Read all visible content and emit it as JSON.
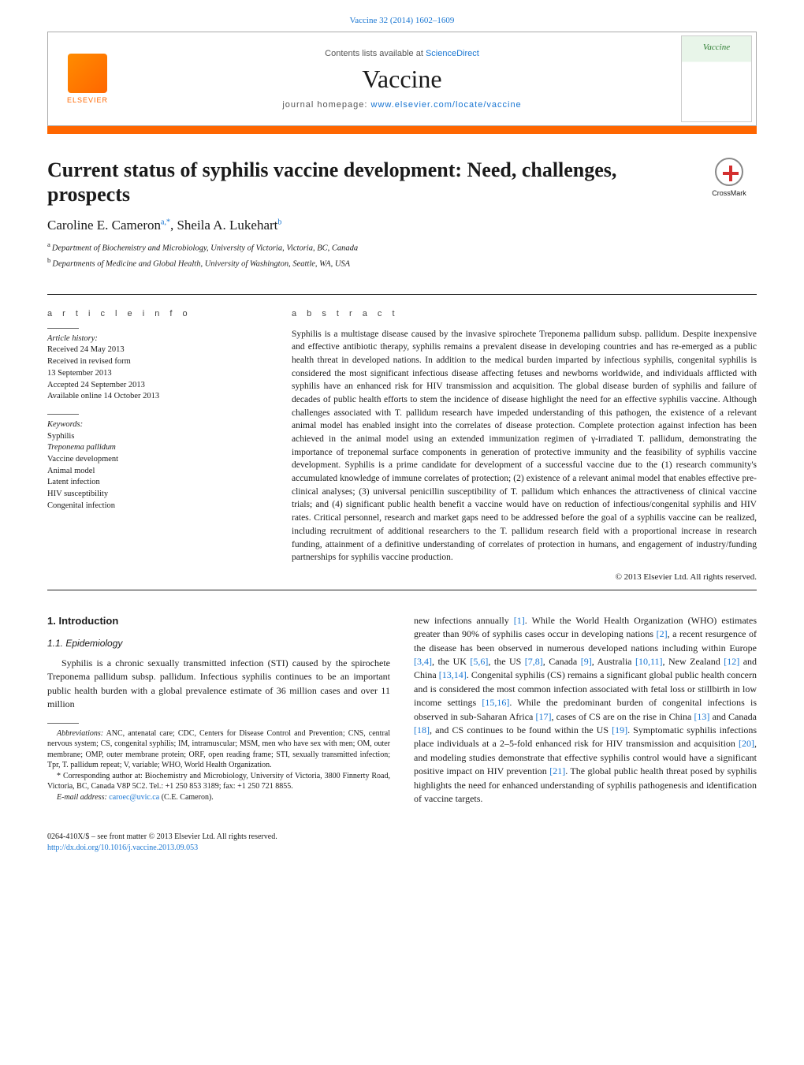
{
  "citation": {
    "text": "Vaccine 32 (2014) 1602–1609"
  },
  "header": {
    "contents_prefix": "Contents lists available at ",
    "contents_link": "ScienceDirect",
    "journal": "Vaccine",
    "homepage_prefix": "journal homepage: ",
    "homepage_link": "www.elsevier.com/locate/vaccine",
    "elsevier_label": "ELSEVIER",
    "cover_label": "Vaccine"
  },
  "crossmark": "CrossMark",
  "title": "Current status of syphilis vaccine development: Need, challenges, prospects",
  "authors": {
    "line": "Caroline E. Cameron",
    "sup_a": "a,",
    "star": "*",
    "sep": ", ",
    "author2": "Sheila A. Lukehart",
    "sup_b": "b"
  },
  "affiliations": {
    "a": "Department of Biochemistry and Microbiology, University of Victoria, Victoria, BC, Canada",
    "b": "Departments of Medicine and Global Health, University of Washington, Seattle, WA, USA"
  },
  "article_info": {
    "heading": "a r t i c l e   i n f o",
    "history_label": "Article history:",
    "received": "Received 24 May 2013",
    "revised1": "Received in revised form",
    "revised2": "13 September 2013",
    "accepted": "Accepted 24 September 2013",
    "online": "Available online 14 October 2013",
    "keywords_label": "Keywords:",
    "keywords": [
      "Syphilis",
      "Treponema pallidum",
      "Vaccine development",
      "Animal model",
      "Latent infection",
      "HIV susceptibility",
      "Congenital infection"
    ]
  },
  "abstract": {
    "heading": "a b s t r a c t",
    "text": "Syphilis is a multistage disease caused by the invasive spirochete Treponema pallidum subsp. pallidum. Despite inexpensive and effective antibiotic therapy, syphilis remains a prevalent disease in developing countries and has re-emerged as a public health threat in developed nations. In addition to the medical burden imparted by infectious syphilis, congenital syphilis is considered the most significant infectious disease affecting fetuses and newborns worldwide, and individuals afflicted with syphilis have an enhanced risk for HIV transmission and acquisition. The global disease burden of syphilis and failure of decades of public health efforts to stem the incidence of disease highlight the need for an effective syphilis vaccine. Although challenges associated with T. pallidum research have impeded understanding of this pathogen, the existence of a relevant animal model has enabled insight into the correlates of disease protection. Complete protection against infection has been achieved in the animal model using an extended immunization regimen of γ-irradiated T. pallidum, demonstrating the importance of treponemal surface components in generation of protective immunity and the feasibility of syphilis vaccine development. Syphilis is a prime candidate for development of a successful vaccine due to the (1) research community's accumulated knowledge of immune correlates of protection; (2) existence of a relevant animal model that enables effective pre-clinical analyses; (3) universal penicillin susceptibility of T. pallidum which enhances the attractiveness of clinical vaccine trials; and (4) significant public health benefit a vaccine would have on reduction of infectious/congenital syphilis and HIV rates. Critical personnel, research and market gaps need to be addressed before the goal of a syphilis vaccine can be realized, including recruitment of additional researchers to the T. pallidum research field with a proportional increase in research funding, attainment of a definitive understanding of correlates of protection in humans, and engagement of industry/funding partnerships for syphilis vaccine production.",
    "copyright": "© 2013 Elsevier Ltd. All rights reserved."
  },
  "body": {
    "intro_heading": "1. Introduction",
    "epi_heading": "1.1. Epidemiology",
    "p1": "Syphilis is a chronic sexually transmitted infection (STI) caused by the spirochete Treponema pallidum subsp. pallidum. Infectious syphilis continues to be an important public health burden with a global prevalence estimate of 36 million cases and over 11 million",
    "p2_a": "new infections annually ",
    "p2_b": ". While the World Health Organization (WHO) estimates greater than 90% of syphilis cases occur in developing nations ",
    "p2_c": ", a recent resurgence of the disease has been observed in numerous developed nations including within Europe ",
    "p2_d": ", the UK ",
    "p2_e": ", the US ",
    "p2_f": ", Canada ",
    "p2_g": ", Australia ",
    "p2_h": ", New Zealand ",
    "p2_i": " and China ",
    "p2_j": ". Congenital syphilis (CS) remains a significant global public health concern and is considered the most common infection associated with fetal loss or stillbirth in low income settings ",
    "p2_k": ". While the predominant burden of congenital infections is observed in sub-Saharan Africa ",
    "p2_l": ", cases of CS are on the rise in China ",
    "p2_m": " and Canada ",
    "p2_n": ", and CS continues to be found within the US ",
    "p2_o": ". Symptomatic syphilis infections place individuals at a 2–5-fold enhanced risk for HIV transmission and acquisition ",
    "p2_p": ", and modeling studies demonstrate that effective syphilis control would have a significant positive impact on HIV prevention ",
    "p2_q": ". The global public health threat posed by syphilis highlights the need for enhanced understanding of syphilis pathogenesis and identification of vaccine targets.",
    "refs": {
      "r1": "[1]",
      "r2": "[2]",
      "r34": "[3,4]",
      "r56": "[5,6]",
      "r78": "[7,8]",
      "r9": "[9]",
      "r1011": "[10,11]",
      "r12": "[12]",
      "r1314": "[13,14]",
      "r1516": "[15,16]",
      "r17": "[17]",
      "r13": "[13]",
      "r18": "[18]",
      "r19": "[19]",
      "r20": "[20]",
      "r21": "[21]"
    }
  },
  "footnotes": {
    "abbrev_label": "Abbreviations:",
    "abbrev": " ANC, antenatal care; CDC, Centers for Disease Control and Prevention; CNS, central nervous system; CS, congenital syphilis; IM, intramuscular; MSM, men who have sex with men; OM, outer membrane; OMP, outer membrane protein; ORF, open reading frame; STI, sexually transmitted infection; Tpr, T. pallidum repeat; V, variable; WHO, World Health Organization.",
    "corr_label": "* Corresponding author at: ",
    "corr": "Biochemistry and Microbiology, University of Victoria, 3800 Finnerty Road, Victoria, BC, Canada V8P 5C2. Tel.: +1 250 853 3189; fax: +1 250 721 8855.",
    "email_label": "E-mail address: ",
    "email": "caroec@uvic.ca",
    "email_after": " (C.E. Cameron)."
  },
  "footer": {
    "issn": "0264-410X/$ – see front matter © 2013 Elsevier Ltd. All rights reserved.",
    "doi": "http://dx.doi.org/10.1016/j.vaccine.2013.09.053"
  },
  "colors": {
    "link": "#1976d2",
    "accent": "#ff6600",
    "text": "#1a1a1a"
  }
}
